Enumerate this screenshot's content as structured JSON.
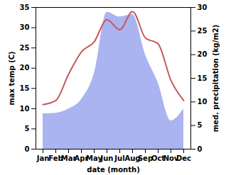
{
  "chart_data": {
    "type": "line",
    "categories": [
      "Jan",
      "Feb",
      "Mar",
      "Apr",
      "May",
      "Jun",
      "Jul",
      "Aug",
      "Sep",
      "Oct",
      "Nov",
      "Dec"
    ],
    "x_label": "date (month)",
    "y_label": "max temp (C)",
    "y2_label": "med. precipitation (kg/m2)",
    "ylim": [
      0,
      35
    ],
    "yticks": [
      0,
      5,
      10,
      15,
      20,
      25,
      30,
      35
    ],
    "y2lim": [
      0,
      30
    ],
    "y2ticks": [
      0,
      5,
      10,
      15,
      20,
      25,
      30
    ],
    "grid": false,
    "series": [
      {
        "name": "max temp",
        "type": "line",
        "color": "#c8585a",
        "values": [
          11,
          12,
          18.5,
          24,
          26.5,
          32,
          29.5,
          34,
          27.5,
          26,
          17,
          12
        ]
      },
      {
        "name": "med. precipitation",
        "type": "area",
        "axis": "y2",
        "color": "#aab4f0",
        "values": [
          7.5,
          7.6,
          8.5,
          10.5,
          16,
          29,
          28,
          28.5,
          20,
          14,
          6,
          8.5
        ]
      }
    ]
  }
}
